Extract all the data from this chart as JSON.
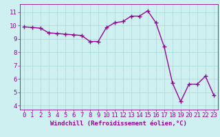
{
  "x": [
    0,
    1,
    2,
    3,
    4,
    5,
    6,
    7,
    8,
    9,
    10,
    11,
    12,
    13,
    14,
    15,
    16,
    17,
    18,
    19,
    20,
    21,
    22,
    23
  ],
  "y": [
    9.9,
    9.85,
    9.8,
    9.45,
    9.4,
    9.35,
    9.3,
    9.25,
    8.8,
    8.8,
    9.85,
    10.2,
    10.3,
    10.7,
    10.7,
    11.1,
    10.2,
    8.4,
    5.7,
    4.3,
    5.6,
    5.6,
    6.2,
    4.8
  ],
  "line_color": "#990099",
  "marker": "+",
  "markersize": 4,
  "linewidth": 1.0,
  "bg_color": "#cff0f0",
  "grid_color": "#aadddd",
  "xlabel": "Windchill (Refroidissement éolien,°C)",
  "xlabel_fontsize": 6.5,
  "xtick_labels": [
    "0",
    "1",
    "2",
    "3",
    "4",
    "5",
    "6",
    "7",
    "8",
    "9",
    "10",
    "11",
    "12",
    "13",
    "14",
    "15",
    "16",
    "17",
    "18",
    "19",
    "20",
    "21",
    "22",
    "23"
  ],
  "ytick_labels": [
    "4",
    "5",
    "6",
    "7",
    "8",
    "9",
    "10",
    "11"
  ],
  "yticks": [
    4,
    5,
    6,
    7,
    8,
    9,
    10,
    11
  ],
  "ylim": [
    3.7,
    11.6
  ],
  "xlim": [
    -0.5,
    23.5
  ],
  "tick_fontsize": 6.5,
  "label_color": "#990099"
}
